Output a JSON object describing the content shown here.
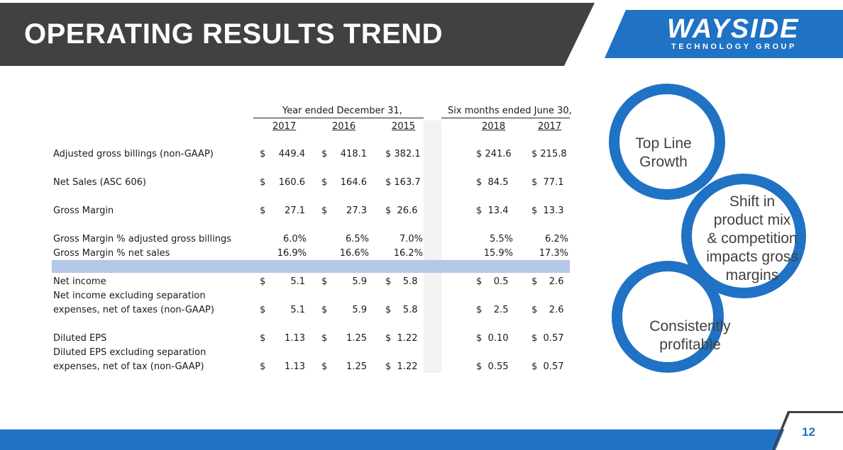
{
  "header": {
    "title": "OPERATING RESULTS TREND"
  },
  "logo": {
    "word": "WAYSIDE",
    "sub": "TECHNOLOGY GROUP"
  },
  "table": {
    "group_headers": [
      "Year ended December 31,",
      "Six months ended June 30,"
    ],
    "years": [
      "2017",
      "2016",
      "2015",
      "2018",
      "2017"
    ],
    "rows": [
      {
        "label": "Adjusted gross billings (non-GAAP)",
        "cells": [
          "$",
          "449.4",
          "$",
          "418.1",
          "$ 382.1",
          "$ 241.6",
          "$ 215.8"
        ]
      },
      {
        "label": "Net Sales (ASC 606)",
        "cells": [
          "$",
          "160.6",
          "$",
          "164.6",
          "$ 163.7",
          "$  84.5",
          "$  77.1"
        ]
      },
      {
        "label": "Gross Margin",
        "cells": [
          "$",
          "27.1",
          "$",
          "27.3",
          "$  26.6",
          "$  13.4",
          "$  13.3"
        ]
      },
      {
        "label": "Gross Margin % adjusted gross billings",
        "cells": [
          "",
          "6.0%",
          "",
          "6.5%",
          "7.0%",
          "5.5%",
          "6.2%"
        ]
      },
      {
        "label": "Gross Margin % net sales",
        "cells": [
          "",
          "16.9%",
          "",
          "16.6%",
          "16.2%",
          "15.9%",
          "17.3%"
        ]
      },
      {
        "label": "Net income",
        "cells": [
          "$",
          "5.1",
          "$",
          "5.9",
          "$    5.8",
          "$    0.5",
          "$    2.6"
        ]
      },
      {
        "label": "Net income excluding separation",
        "label2": "expenses, net of taxes (non-GAAP)",
        "cells": [
          "$",
          "5.1",
          "$",
          "5.9",
          "$    5.8",
          "$    2.5",
          "$    2.6"
        ]
      },
      {
        "label": "Diluted EPS",
        "cells": [
          "$",
          "1.13",
          "$",
          "1.25",
          "$  1.22",
          "$  0.10",
          "$  0.57"
        ]
      },
      {
        "label": "Diluted EPS excluding separation",
        "label2": "expenses, net of tax (non-GAAP)",
        "cells": [
          "$",
          "1.13",
          "$",
          "1.25",
          "$  1.22",
          "$  0.55",
          "$  0.57"
        ]
      }
    ]
  },
  "circles": [
    {
      "lines": [
        "Top Line",
        "Growth"
      ]
    },
    {
      "lines": [
        "Shift in",
        "product mix",
        "& competition",
        "impacts gross",
        "margins"
      ]
    },
    {
      "lines": [
        "Consistently",
        "profitable"
      ]
    }
  ],
  "footer": {
    "page_number": "12"
  },
  "colors": {
    "accent": "#1f72c4",
    "header_bg": "#414042",
    "band": "#b4c7e7"
  }
}
